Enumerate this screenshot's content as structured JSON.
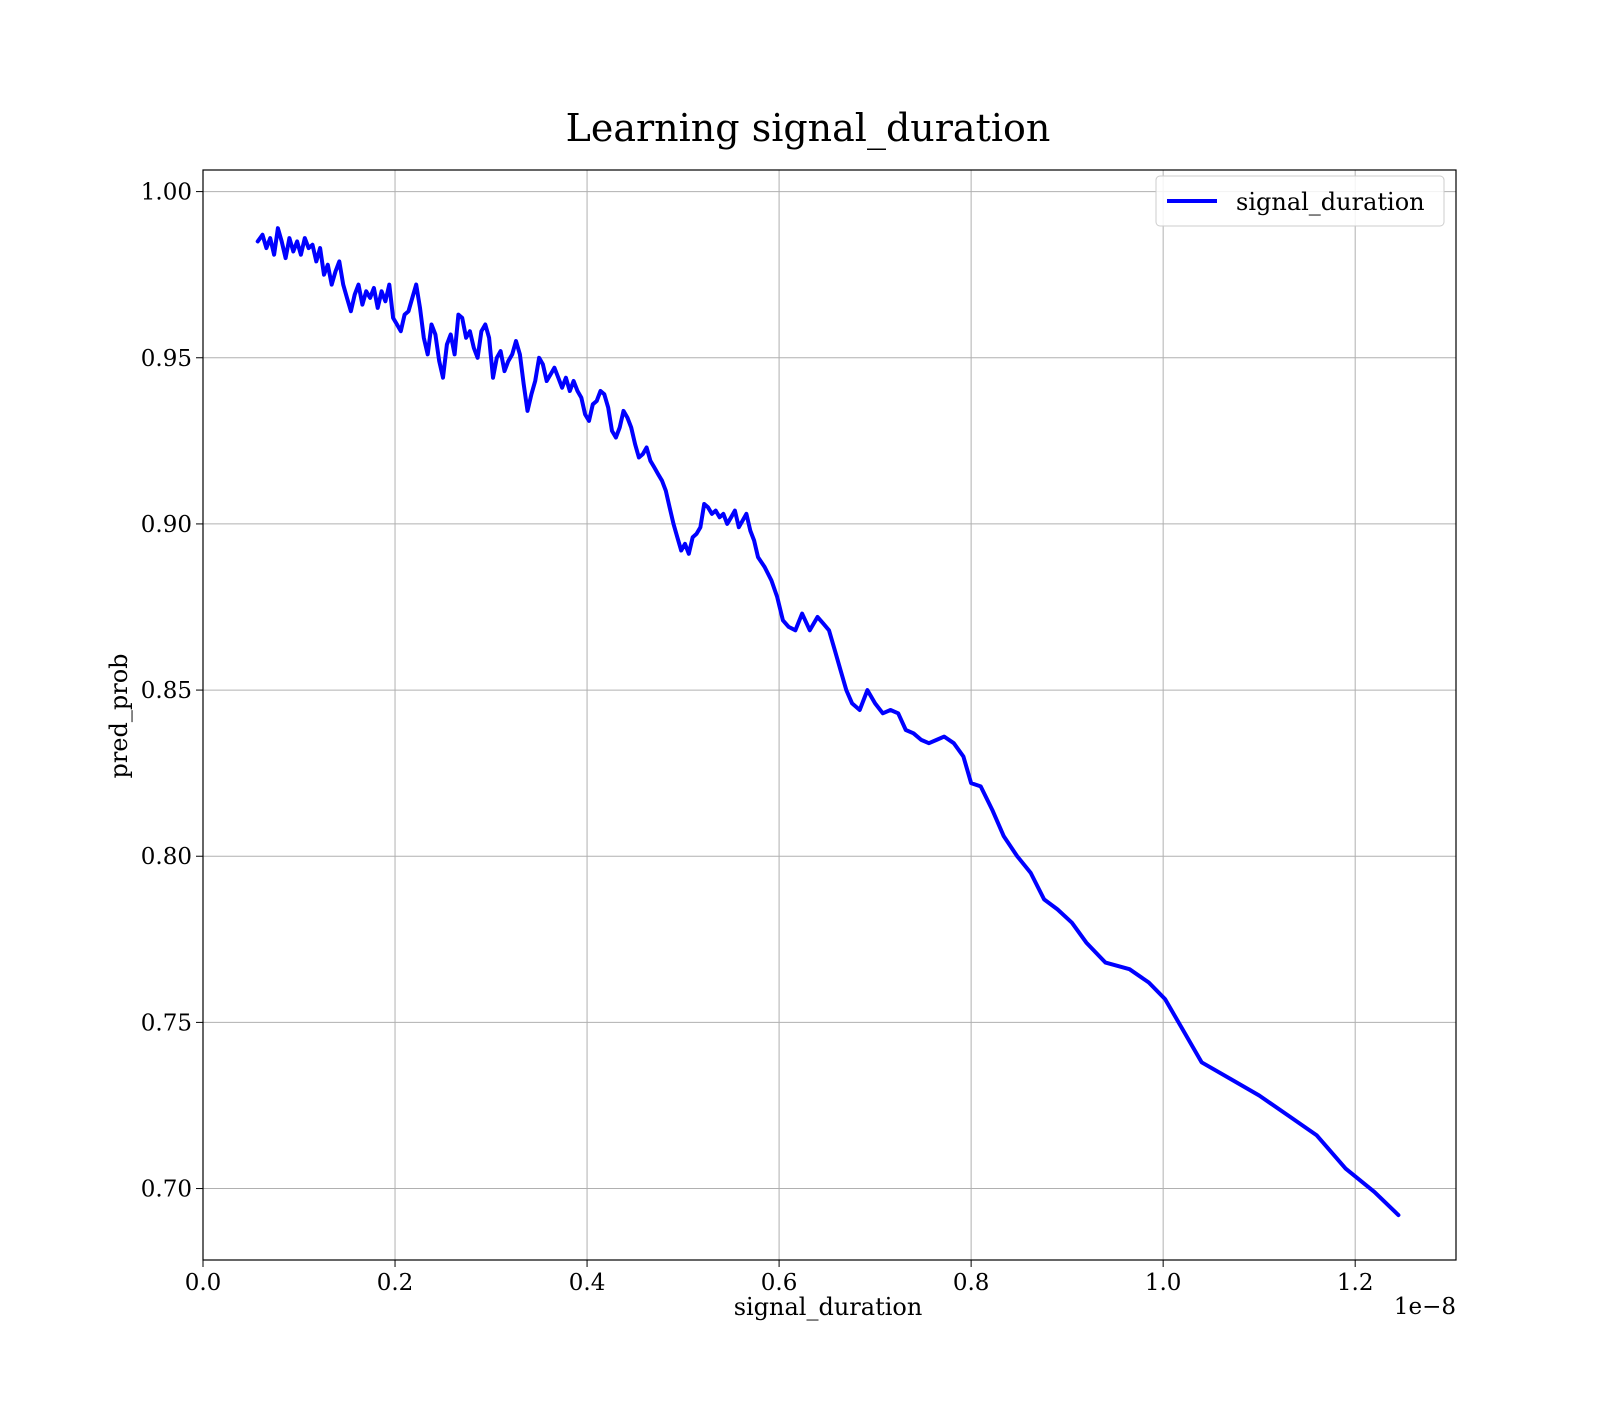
{
  "chart_data": {
    "type": "line",
    "title": "Learning signal_duration",
    "xlabel": "signal_duration",
    "ylabel": "pred_prob",
    "x_offset_label": "1e−8",
    "x_scale_exponent": -8,
    "xlim": [
      0.0,
      1.305
    ],
    "ylim": [
      0.6785,
      1.0065
    ],
    "xticks": [
      0.0,
      0.2,
      0.4,
      0.6,
      0.8,
      1.0,
      1.2
    ],
    "xtick_labels": [
      "0.0",
      "0.2",
      "0.4",
      "0.6",
      "0.8",
      "1.0",
      "1.2"
    ],
    "yticks": [
      0.7,
      0.75,
      0.8,
      0.85,
      0.9,
      0.95,
      1.0
    ],
    "ytick_labels": [
      "0.70",
      "0.75",
      "0.80",
      "0.85",
      "0.90",
      "0.95",
      "1.00"
    ],
    "grid": true,
    "legend_position": "top-right",
    "series": [
      {
        "name": "signal_duration",
        "color": "#0000ff",
        "x": [
          0.057,
          0.062,
          0.066,
          0.07,
          0.074,
          0.078,
          0.082,
          0.086,
          0.09,
          0.094,
          0.098,
          0.102,
          0.106,
          0.11,
          0.114,
          0.118,
          0.122,
          0.126,
          0.13,
          0.134,
          0.138,
          0.142,
          0.146,
          0.15,
          0.154,
          0.158,
          0.162,
          0.166,
          0.17,
          0.174,
          0.178,
          0.182,
          0.186,
          0.19,
          0.194,
          0.198,
          0.202,
          0.206,
          0.21,
          0.214,
          0.218,
          0.222,
          0.226,
          0.23,
          0.234,
          0.238,
          0.242,
          0.246,
          0.25,
          0.254,
          0.258,
          0.262,
          0.266,
          0.27,
          0.274,
          0.278,
          0.282,
          0.286,
          0.29,
          0.294,
          0.298,
          0.302,
          0.306,
          0.31,
          0.314,
          0.318,
          0.322,
          0.326,
          0.33,
          0.334,
          0.338,
          0.342,
          0.346,
          0.35,
          0.354,
          0.358,
          0.362,
          0.366,
          0.37,
          0.374,
          0.378,
          0.382,
          0.386,
          0.39,
          0.394,
          0.398,
          0.402,
          0.406,
          0.41,
          0.414,
          0.418,
          0.422,
          0.426,
          0.43,
          0.434,
          0.438,
          0.442,
          0.446,
          0.45,
          0.454,
          0.458,
          0.462,
          0.466,
          0.47,
          0.474,
          0.478,
          0.482,
          0.486,
          0.49,
          0.494,
          0.498,
          0.502,
          0.506,
          0.51,
          0.514,
          0.518,
          0.522,
          0.526,
          0.53,
          0.534,
          0.538,
          0.542,
          0.546,
          0.55,
          0.554,
          0.558,
          0.562,
          0.566,
          0.57,
          0.574,
          0.578,
          0.585,
          0.592,
          0.598,
          0.604,
          0.61,
          0.617,
          0.624,
          0.632,
          0.64,
          0.646,
          0.652,
          0.658,
          0.664,
          0.67,
          0.676,
          0.684,
          0.692,
          0.7,
          0.708,
          0.716,
          0.724,
          0.732,
          0.74,
          0.748,
          0.756,
          0.764,
          0.772,
          0.782,
          0.792,
          0.8,
          0.81,
          0.822,
          0.834,
          0.848,
          0.862,
          0.876,
          0.89,
          0.905,
          0.92,
          0.94,
          0.965,
          0.985,
          1.002,
          1.02,
          1.04,
          1.07,
          1.1,
          1.13,
          1.16,
          1.19,
          1.22,
          1.245
        ],
        "y": [
          0.985,
          0.987,
          0.983,
          0.986,
          0.981,
          0.989,
          0.985,
          0.98,
          0.986,
          0.982,
          0.985,
          0.981,
          0.986,
          0.983,
          0.984,
          0.979,
          0.983,
          0.975,
          0.978,
          0.972,
          0.976,
          0.979,
          0.972,
          0.968,
          0.964,
          0.969,
          0.972,
          0.966,
          0.97,
          0.968,
          0.971,
          0.965,
          0.97,
          0.967,
          0.972,
          0.962,
          0.96,
          0.958,
          0.963,
          0.964,
          0.968,
          0.972,
          0.965,
          0.956,
          0.951,
          0.96,
          0.957,
          0.949,
          0.944,
          0.954,
          0.957,
          0.951,
          0.963,
          0.962,
          0.956,
          0.958,
          0.953,
          0.95,
          0.958,
          0.96,
          0.956,
          0.944,
          0.95,
          0.952,
          0.946,
          0.949,
          0.951,
          0.955,
          0.951,
          0.942,
          0.934,
          0.939,
          0.943,
          0.95,
          0.948,
          0.943,
          0.945,
          0.947,
          0.944,
          0.941,
          0.944,
          0.94,
          0.943,
          0.94,
          0.938,
          0.933,
          0.931,
          0.936,
          0.937,
          0.94,
          0.939,
          0.935,
          0.928,
          0.926,
          0.929,
          0.934,
          0.932,
          0.929,
          0.924,
          0.92,
          0.921,
          0.923,
          0.919,
          0.917,
          0.915,
          0.913,
          0.91,
          0.905,
          0.9,
          0.896,
          0.892,
          0.894,
          0.891,
          0.896,
          0.897,
          0.899,
          0.906,
          0.905,
          0.903,
          0.904,
          0.902,
          0.903,
          0.9,
          0.902,
          0.904,
          0.899,
          0.901,
          0.903,
          0.898,
          0.895,
          0.89,
          0.887,
          0.883,
          0.878,
          0.871,
          0.869,
          0.868,
          0.873,
          0.868,
          0.872,
          0.87,
          0.868,
          0.862,
          0.856,
          0.85,
          0.846,
          0.844,
          0.85,
          0.846,
          0.843,
          0.844,
          0.843,
          0.838,
          0.837,
          0.835,
          0.834,
          0.835,
          0.836,
          0.834,
          0.83,
          0.822,
          0.821,
          0.814,
          0.806,
          0.8,
          0.795,
          0.787,
          0.784,
          0.78,
          0.774,
          0.768,
          0.766,
          0.762,
          0.757,
          0.748,
          0.738,
          0.733,
          0.728,
          0.722,
          0.716,
          0.706,
          0.699,
          0.692
        ]
      }
    ]
  }
}
